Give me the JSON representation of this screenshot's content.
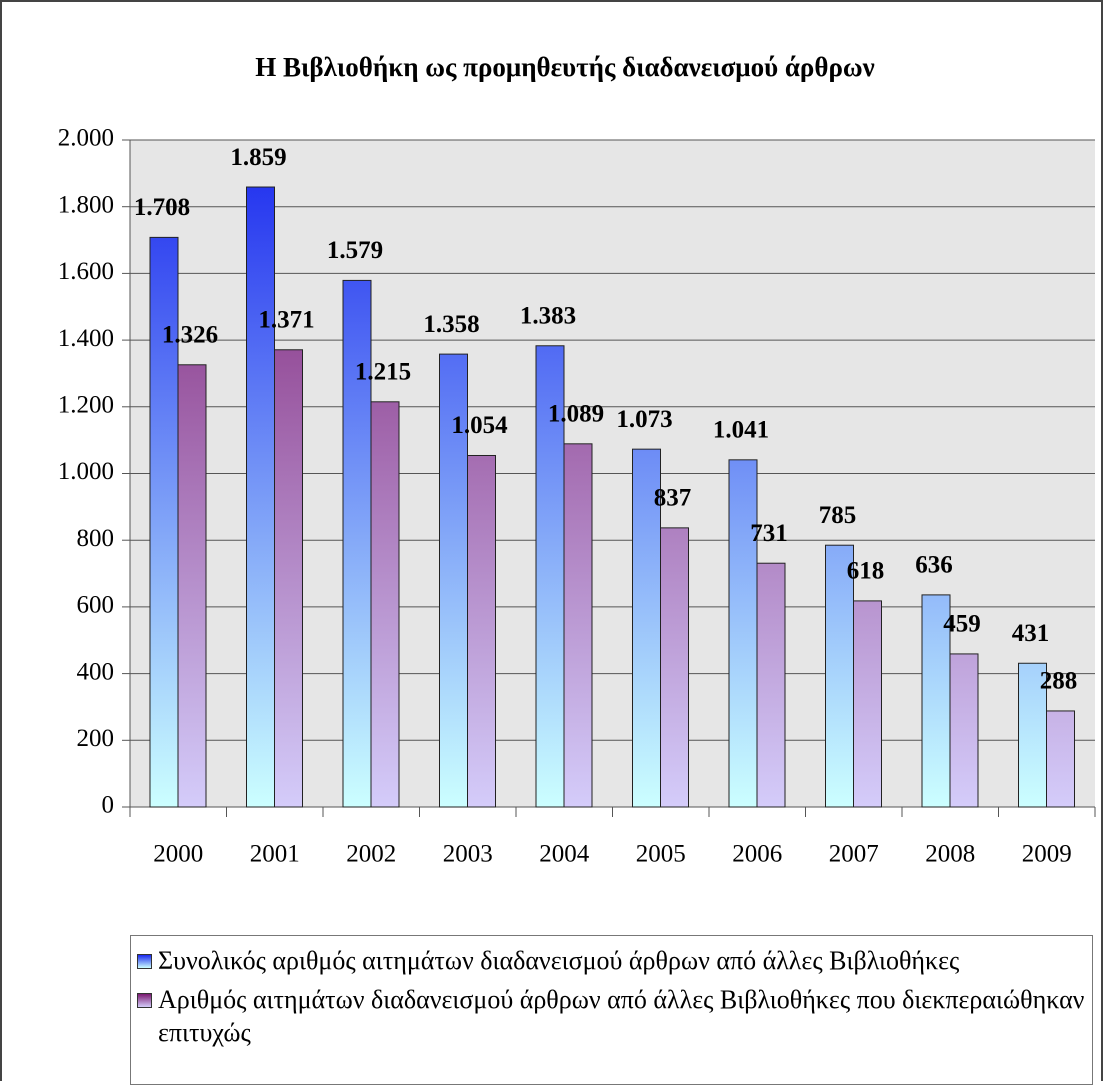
{
  "chart_data": {
    "type": "bar",
    "title": "Η Βιβλιοθήκη ως προμηθευτής διαδανεισμού άρθρων",
    "categories": [
      "2000",
      "2001",
      "2002",
      "2003",
      "2004",
      "2005",
      "2006",
      "2007",
      "2008",
      "2009"
    ],
    "series": [
      {
        "name": "Συνολικός αριθμός αιτημάτων διαδανεισμού άρθρων από άλλες Βιβλιοθήκες",
        "color": "#1a28ee",
        "color_end": "#ccffff",
        "values": [
          1708,
          1859,
          1579,
          1358,
          1383,
          1073,
          1041,
          785,
          636,
          431
        ],
        "value_labels": [
          "1.708",
          "1.859",
          "1.579",
          "1.358",
          "1.383",
          "1.073",
          "1.041",
          "785",
          "636",
          "431"
        ]
      },
      {
        "name": "Αριθμός αιτημάτων διαδανεισμού άρθρων από άλλες Βιβλιοθήκες που διεκπεραιώθηκαν επιτυχώς",
        "color": "#7a1870",
        "color_end": "#d4ccfa",
        "values": [
          1326,
          1371,
          1215,
          1054,
          1089,
          837,
          731,
          618,
          459,
          288
        ],
        "value_labels": [
          "1.326",
          "1.371",
          "1.215",
          "1.054",
          "1.089",
          "837",
          "731",
          "618",
          "459",
          "288"
        ]
      }
    ],
    "ylim": [
      0,
      2000
    ],
    "yticks": [
      0,
      200,
      400,
      600,
      800,
      {
        "value": 1000,
        "label": "1.000"
      },
      {
        "value": 1200,
        "label": "1.200"
      },
      {
        "value": 1400,
        "label": "1.400"
      },
      {
        "value": 1600,
        "label": "1.600"
      },
      {
        "value": 1800,
        "label": "1.800"
      },
      {
        "value": 2000,
        "label": "2.000"
      }
    ],
    "grid": true
  }
}
